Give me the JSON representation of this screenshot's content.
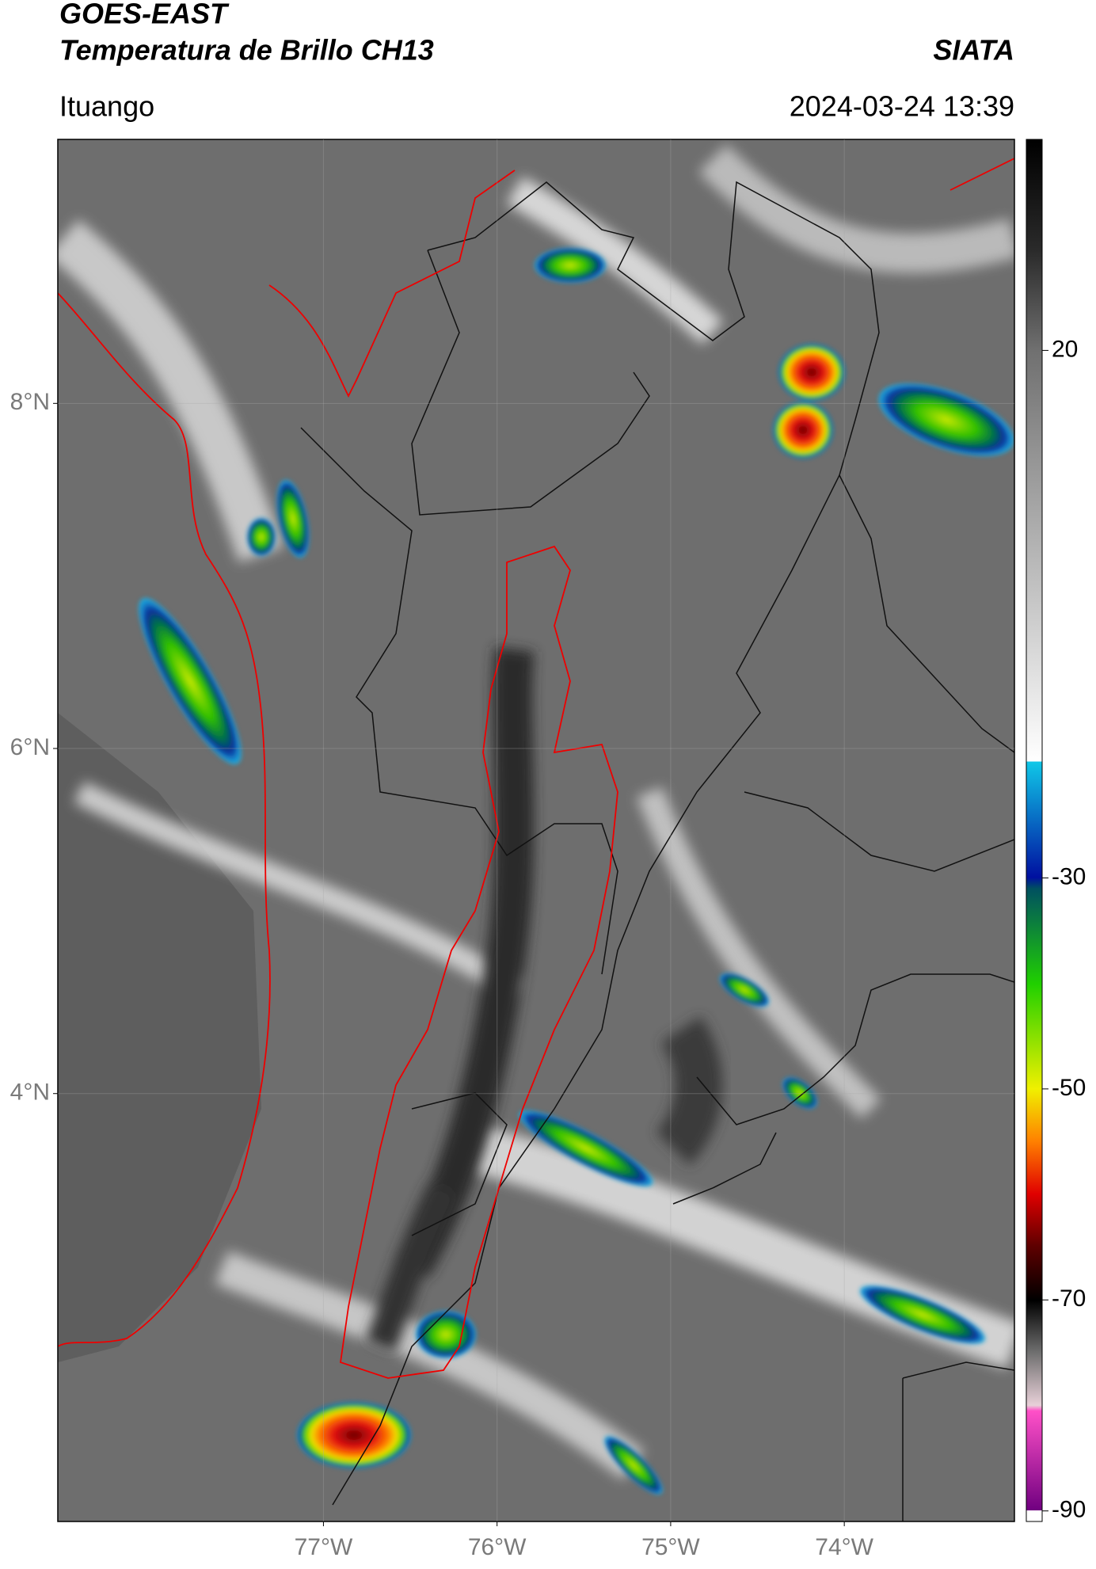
{
  "header": {
    "title": "GOES-EAST",
    "subtitle": "Temperatura de Brillo CH13",
    "brand": "SIATA",
    "location": "Ituango",
    "datetime": "2024-03-24 13:39"
  },
  "map": {
    "xlim": [
      -78.53,
      -73.02
    ],
    "ylim": [
      1.52,
      9.53
    ],
    "xticks": [
      {
        "value": -77,
        "label": "77°W"
      },
      {
        "value": -76,
        "label": "76°W"
      },
      {
        "value": -75,
        "label": "75°W"
      },
      {
        "value": -74,
        "label": "74°W"
      }
    ],
    "yticks": [
      {
        "value": 8,
        "label": "8°N"
      },
      {
        "value": 6,
        "label": "6°N"
      },
      {
        "value": 4,
        "label": "4°N"
      }
    ],
    "grid": true
  },
  "colorbar": {
    "lim": [
      -91,
      40
    ],
    "ticks": [
      20,
      -30,
      -50,
      -70,
      -90
    ]
  }
}
